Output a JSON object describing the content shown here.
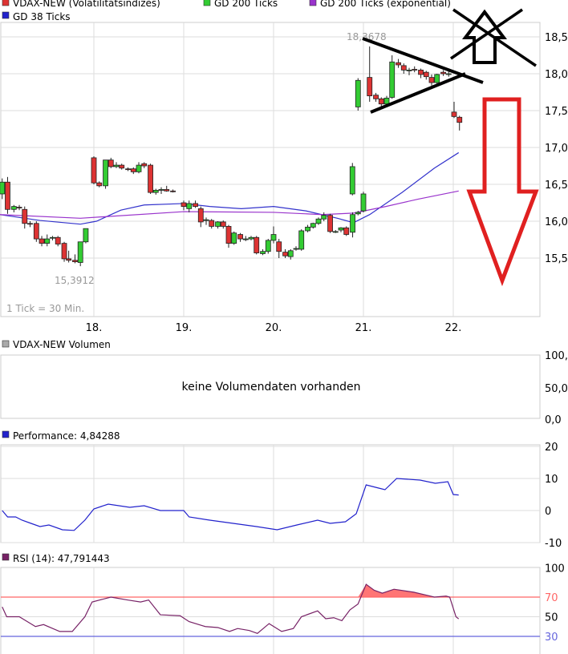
{
  "colors": {
    "up": "#33cc33",
    "down": "#dd3333",
    "gd38": "#3333cc",
    "gd200exp": "#9933cc",
    "perf": "#2222cc",
    "rsi": "#772266",
    "rsi_upper": "#ff6666",
    "rsi_lower": "#6666dd",
    "grid": "#dddddd",
    "annotation_black": "#000000",
    "annotation_red": "#e02020"
  },
  "legend": {
    "items": [
      {
        "label": "VDAX-NEW (Volatilitätsindizes)",
        "color": "#dd3333"
      },
      {
        "label": "GD 200 Ticks",
        "color": "#33cc33"
      },
      {
        "label": "GD 200 Ticks (exponential)",
        "color": "#9933cc"
      },
      {
        "label": "GD 38 Ticks",
        "color": "#2222cc"
      }
    ]
  },
  "chart_data": [
    {
      "type": "candlestick",
      "ylim": [
        15.0,
        18.7
      ],
      "yticks": [
        "18,5",
        "18,0",
        "17,5",
        "17,0",
        "16,5",
        "16,0",
        "15,5"
      ],
      "ytick_values": [
        18.5,
        18.0,
        17.5,
        17.0,
        16.5,
        16.0,
        15.5
      ],
      "xlim": [
        16.95,
        22.96
      ],
      "xticks": [
        "18.",
        "19.",
        "20.",
        "21.",
        "22."
      ],
      "xtick_values": [
        18,
        19,
        20,
        21,
        22
      ],
      "grid": true,
      "high_label": "18,3678",
      "low_label": "15,3912",
      "tick_note": "1 Tick = 30 Min.",
      "candles": [
        [
          16.98,
          16.37,
          16.58,
          16.3,
          16.53
        ],
        [
          17.04,
          16.53,
          16.6,
          16.1,
          16.16
        ],
        [
          17.11,
          16.16,
          16.22,
          16.12,
          16.2
        ],
        [
          17.17,
          16.19,
          16.22,
          16.15,
          16.18
        ],
        [
          17.23,
          16.16,
          16.2,
          15.9,
          15.97
        ],
        [
          17.29,
          15.97,
          16.0,
          15.92,
          15.96
        ],
        [
          17.36,
          15.97,
          16.0,
          15.72,
          15.76
        ],
        [
          17.42,
          15.76,
          15.8,
          15.66,
          15.7
        ],
        [
          17.48,
          15.7,
          15.82,
          15.66,
          15.76
        ],
        [
          17.54,
          15.77,
          15.8,
          15.74,
          15.78
        ],
        [
          17.6,
          15.78,
          15.8,
          15.66,
          15.69
        ],
        [
          17.67,
          15.7,
          15.72,
          15.45,
          15.49
        ],
        [
          17.72,
          15.49,
          15.6,
          15.44,
          15.47
        ],
        [
          17.79,
          15.47,
          15.55,
          15.43,
          15.45
        ],
        [
          17.85,
          15.44,
          15.72,
          15.39,
          15.72
        ],
        [
          17.91,
          15.72,
          15.9,
          15.7,
          15.9
        ],
        [
          18.0,
          16.86,
          16.88,
          16.5,
          16.52
        ],
        [
          18.06,
          16.52,
          16.54,
          16.46,
          16.48
        ],
        [
          18.13,
          16.48,
          16.83,
          16.44,
          16.83
        ],
        [
          18.19,
          16.83,
          16.86,
          16.72,
          16.74
        ],
        [
          18.25,
          16.74,
          16.8,
          16.72,
          16.76
        ],
        [
          18.31,
          16.76,
          16.78,
          16.7,
          16.72
        ],
        [
          18.38,
          16.71,
          16.73,
          16.68,
          16.7
        ],
        [
          18.44,
          16.71,
          16.73,
          16.64,
          16.67
        ],
        [
          18.5,
          16.67,
          16.8,
          16.65,
          16.76
        ],
        [
          18.56,
          16.78,
          16.8,
          16.72,
          16.75
        ],
        [
          18.63,
          16.76,
          16.78,
          16.37,
          16.39
        ],
        [
          18.69,
          16.39,
          16.44,
          16.36,
          16.42
        ],
        [
          18.75,
          16.42,
          16.46,
          16.37,
          16.43
        ],
        [
          18.81,
          16.43,
          16.48,
          16.4,
          16.41
        ],
        [
          18.88,
          16.41,
          16.43,
          16.39,
          16.4
        ],
        [
          19.0,
          16.25,
          16.28,
          16.15,
          16.2
        ],
        [
          19.06,
          16.17,
          16.28,
          16.12,
          16.24
        ],
        [
          19.13,
          16.24,
          16.28,
          16.18,
          16.2
        ],
        [
          19.19,
          16.17,
          16.2,
          15.92,
          15.99
        ],
        [
          19.25,
          16.02,
          16.05,
          15.95,
          16.02
        ],
        [
          19.31,
          16.01,
          16.03,
          15.9,
          15.93
        ],
        [
          19.38,
          15.93,
          16.0,
          15.9,
          15.99
        ],
        [
          19.44,
          15.99,
          16.01,
          15.9,
          15.93
        ],
        [
          19.5,
          15.93,
          15.95,
          15.64,
          15.7
        ],
        [
          19.56,
          15.7,
          15.86,
          15.68,
          15.84
        ],
        [
          19.63,
          15.82,
          15.84,
          15.72,
          15.76
        ],
        [
          19.69,
          15.76,
          15.8,
          15.73,
          15.76
        ],
        [
          19.75,
          15.76,
          15.8,
          15.74,
          15.78
        ],
        [
          19.81,
          15.78,
          15.8,
          15.55,
          15.57
        ],
        [
          19.88,
          15.56,
          15.62,
          15.54,
          15.59
        ],
        [
          19.94,
          15.59,
          15.76,
          15.56,
          15.74
        ],
        [
          20.0,
          15.74,
          15.93,
          15.7,
          15.82
        ],
        [
          20.06,
          15.72,
          15.76,
          15.5,
          15.59
        ],
        [
          20.13,
          15.58,
          15.62,
          15.5,
          15.53
        ],
        [
          20.19,
          15.52,
          15.62,
          15.48,
          15.6
        ],
        [
          20.25,
          15.63,
          15.66,
          15.6,
          15.63
        ],
        [
          20.31,
          15.62,
          15.89,
          15.6,
          15.87
        ],
        [
          20.38,
          15.87,
          15.95,
          15.85,
          15.92
        ],
        [
          20.44,
          15.92,
          15.98,
          15.9,
          15.97
        ],
        [
          20.5,
          15.97,
          16.05,
          15.95,
          16.03
        ],
        [
          20.56,
          16.03,
          16.12,
          16.0,
          16.08
        ],
        [
          20.63,
          16.08,
          16.1,
          15.84,
          15.86
        ],
        [
          20.69,
          15.86,
          15.88,
          15.84,
          15.86
        ],
        [
          20.75,
          15.88,
          15.92,
          15.85,
          15.91
        ],
        [
          20.81,
          15.91,
          15.93,
          15.8,
          15.82
        ],
        [
          20.88,
          15.85,
          16.12,
          15.78,
          16.09
        ],
        [
          20.94,
          16.1,
          16.14,
          16.08,
          16.12
        ],
        [
          21.0,
          16.14,
          16.4,
          16.12,
          16.37
        ],
        [
          21.06,
          16.37,
          16.79,
          16.35,
          16.74
        ],
        [
          21.0,
          17.55,
          17.94,
          17.5,
          17.91
        ],
        [
          21.06,
          17.95,
          18.37,
          17.62,
          17.7
        ],
        [
          21.13,
          17.71,
          17.74,
          17.62,
          17.66
        ],
        [
          21.19,
          17.66,
          17.68,
          17.55,
          17.59
        ],
        [
          21.25,
          17.59,
          17.7,
          17.56,
          17.67
        ],
        [
          21.31,
          17.68,
          18.25,
          17.66,
          18.16
        ],
        [
          21.38,
          18.15,
          18.2,
          18.08,
          18.12
        ],
        [
          21.44,
          18.11,
          18.14,
          18.0,
          18.05
        ],
        [
          21.5,
          18.05,
          18.08,
          17.98,
          18.05
        ],
        [
          21.56,
          18.06,
          18.1,
          18.02,
          18.05
        ],
        [
          21.63,
          18.05,
          18.07,
          17.94,
          17.99
        ],
        [
          21.69,
          18.02,
          18.04,
          17.92,
          17.96
        ],
        [
          21.75,
          17.95,
          17.99,
          17.84,
          17.88
        ],
        [
          21.81,
          17.88,
          18.0,
          17.85,
          17.99
        ],
        [
          21.88,
          18.02,
          18.05,
          17.97,
          18.0
        ],
        [
          21.94,
          18.0,
          18.04,
          17.96,
          18.0
        ],
        [
          22.0,
          17.48,
          17.62,
          17.4,
          17.42
        ],
        [
          22.06,
          17.41,
          17.43,
          17.23,
          17.34
        ]
      ],
      "series": [
        {
          "name": "GD 38 Ticks",
          "x": [
            16.95,
            17.4,
            17.85,
            18.03,
            18.3,
            18.56,
            19.0,
            19.29,
            19.64,
            20.0,
            20.36,
            20.71,
            20.89,
            21.07,
            21.43,
            21.79,
            22.06
          ],
          "y": [
            16.09,
            16.01,
            15.96,
            16.0,
            16.15,
            16.22,
            16.24,
            16.2,
            16.17,
            16.2,
            16.14,
            16.04,
            15.98,
            16.09,
            16.39,
            16.72,
            16.93
          ]
        },
        {
          "name": "GD 200 Ticks (exponential)",
          "x": [
            16.95,
            17.85,
            19.0,
            20.0,
            20.54,
            20.89,
            21.25,
            21.61,
            22.06
          ],
          "y": [
            16.09,
            16.04,
            16.13,
            16.12,
            16.09,
            16.11,
            16.2,
            16.3,
            16.41
          ]
        }
      ]
    },
    {
      "type": "bar",
      "title": "VDAX-NEW Volumen",
      "title_color": "#aaaaaa",
      "yticks": [
        "100,0",
        "50,0",
        "0,0"
      ],
      "message": "keine Volumendaten vorhanden"
    },
    {
      "type": "line",
      "title": "Performance: 4,84288",
      "ylim": [
        -10,
        20
      ],
      "yticks": [
        "20",
        "10",
        "0",
        "-10"
      ],
      "ytick_values": [
        20,
        10,
        0,
        -10
      ],
      "x": [
        16.98,
        17.04,
        17.13,
        17.2,
        17.3,
        17.4,
        17.5,
        17.65,
        17.78,
        17.9,
        18.0,
        18.16,
        18.4,
        18.56,
        18.74,
        19.0,
        19.06,
        19.29,
        19.55,
        19.81,
        20.04,
        20.26,
        20.49,
        20.63,
        20.8,
        20.92,
        21.03,
        21.17,
        21.24,
        21.37,
        21.63,
        21.8,
        21.94,
        22.0,
        22.06
      ],
      "y": [
        0,
        -2,
        -2,
        -3,
        -4,
        -5,
        -4.5,
        -6,
        -6.2,
        -3,
        0.5,
        2,
        1,
        1.5,
        0,
        0,
        -2,
        -3,
        -4,
        -5,
        -6,
        -4.5,
        -3,
        -4,
        -3.5,
        -1,
        8,
        7,
        6.5,
        10,
        9.5,
        8.5,
        9,
        5,
        4.84
      ]
    },
    {
      "type": "area",
      "title": "RSI (14): 47,791443",
      "ylim": [
        0,
        100
      ],
      "yticks": [
        "100",
        "70",
        "50",
        "30"
      ],
      "ytick_values": [
        100,
        70,
        50,
        30
      ],
      "thresholds": [
        70,
        30
      ],
      "x": [
        16.98,
        17.03,
        17.17,
        17.26,
        17.35,
        17.44,
        17.62,
        17.76,
        17.9,
        17.98,
        18.19,
        18.38,
        18.52,
        18.61,
        18.74,
        18.96,
        19.06,
        19.24,
        19.38,
        19.51,
        19.6,
        19.73,
        19.82,
        19.95,
        20.09,
        20.22,
        20.31,
        20.49,
        20.58,
        20.67,
        20.76,
        20.85,
        20.94,
        21.03,
        21.12,
        21.21,
        21.34,
        21.56,
        21.7,
        21.79,
        21.92,
        21.96,
        22.03,
        22.06
      ],
      "y": [
        60,
        50,
        50,
        45,
        40,
        42,
        35,
        35,
        50,
        65,
        70,
        67,
        65,
        67,
        52,
        51,
        45,
        40,
        39,
        35,
        38,
        36,
        33,
        43,
        35,
        38,
        50,
        56,
        48,
        49,
        46,
        57,
        63,
        83,
        77,
        74,
        78,
        75,
        72,
        70,
        71,
        70,
        50,
        47.79
      ]
    }
  ]
}
